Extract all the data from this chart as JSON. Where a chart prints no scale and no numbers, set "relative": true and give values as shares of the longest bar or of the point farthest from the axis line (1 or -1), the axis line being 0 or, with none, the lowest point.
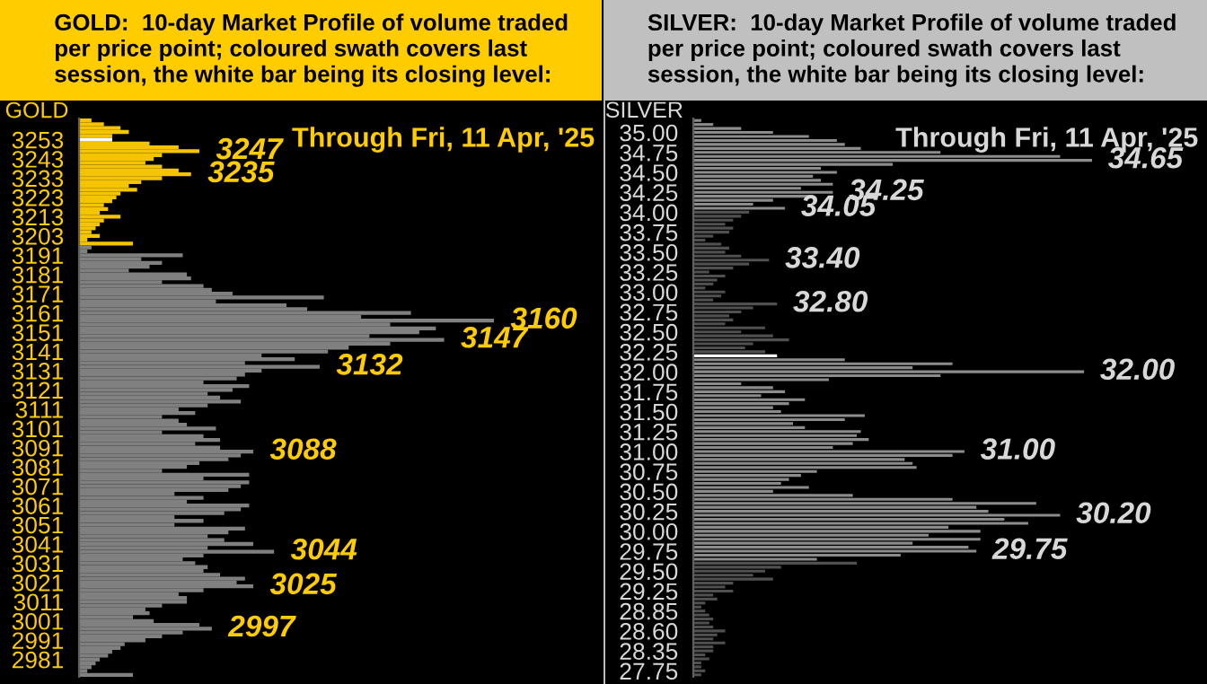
{
  "chart_data": [
    {
      "type": "bar",
      "orientation": "horizontal",
      "relative": true,
      "title": "GOLD:  10-day Market Profile of volume traded\nper price point; coloured swath covers last\nsession, the white bar being its closing level:",
      "ylabel": "GOLD",
      "categories": [
        null,
        null,
        null,
        null,
        null,
        "3253",
        null,
        null,
        null,
        null,
        "3243",
        null,
        null,
        null,
        null,
        "3233",
        null,
        null,
        null,
        null,
        "3223",
        null,
        null,
        null,
        null,
        "3213",
        null,
        null,
        null,
        null,
        "3203",
        null,
        null,
        null,
        null,
        "3191",
        null,
        null,
        null,
        null,
        "3181",
        null,
        null,
        null,
        null,
        "3171",
        null,
        null,
        null,
        null,
        "3161",
        null,
        null,
        null,
        null,
        "3151",
        null,
        null,
        null,
        null,
        "3141",
        null,
        null,
        null,
        null,
        "3131",
        null,
        null,
        null,
        null,
        "3121",
        null,
        null,
        null,
        null,
        "3111",
        null,
        null,
        null,
        null,
        "3101",
        null,
        null,
        null,
        null,
        "3091",
        null,
        null,
        null,
        null,
        "3081",
        null,
        null,
        null,
        null,
        "3071",
        null,
        null,
        null,
        null,
        "3061",
        null,
        null,
        null,
        null,
        "3051",
        null,
        null,
        null,
        null,
        "3041",
        null,
        null,
        null,
        null,
        "3031",
        null,
        null,
        null,
        null,
        "3021",
        null,
        null,
        null,
        null,
        "3011",
        null,
        null,
        null,
        null,
        "3001",
        null,
        null,
        null,
        null,
        "2991",
        null,
        null,
        null,
        null,
        "2981",
        null,
        null,
        null,
        null
      ],
      "values": [
        0.03,
        0.06,
        0.1,
        0.12,
        0.08,
        0.08,
        0.17,
        0.24,
        0.29,
        0.2,
        0.18,
        0.16,
        0.2,
        0.24,
        0.27,
        0.2,
        0.15,
        0.12,
        0.14,
        0.1,
        0.09,
        0.08,
        0.06,
        0.07,
        0.05,
        0.1,
        0.06,
        0.05,
        0.04,
        0.03,
        0.05,
        0.02,
        0.13,
        0.03,
        0.02,
        0.25,
        0.15,
        0.2,
        0.17,
        0.12,
        0.26,
        0.27,
        0.2,
        0.3,
        0.32,
        0.37,
        0.59,
        0.33,
        0.5,
        0.55,
        0.8,
        0.68,
        1.0,
        0.75,
        0.86,
        0.82,
        0.7,
        0.88,
        0.75,
        0.65,
        0.6,
        0.44,
        0.52,
        0.4,
        0.58,
        0.44,
        0.4,
        0.38,
        0.3,
        0.41,
        0.37,
        0.31,
        0.34,
        0.39,
        0.31,
        0.24,
        0.28,
        0.2,
        0.24,
        0.26,
        0.33,
        0.2,
        0.3,
        0.34,
        0.28,
        0.34,
        0.42,
        0.39,
        0.36,
        0.29,
        0.26,
        0.2,
        0.41,
        0.3,
        0.41,
        0.39,
        0.36,
        0.23,
        0.3,
        0.26,
        0.41,
        0.39,
        0.35,
        0.23,
        0.3,
        0.23,
        0.4,
        0.36,
        0.31,
        0.35,
        0.42,
        0.31,
        0.47,
        0.3,
        0.25,
        0.28,
        0.31,
        0.3,
        0.34,
        0.4,
        0.38,
        0.42,
        0.3,
        0.24,
        0.26,
        0.26,
        0.2,
        0.16,
        0.17,
        0.13,
        0.18,
        0.29,
        0.32,
        0.25,
        0.2,
        0.16,
        0.11,
        0.1,
        0.08,
        0.07,
        0.05,
        0.04,
        0.03,
        0.02,
        0.13
      ],
      "colors": [
        "#f5c400",
        "#f5c400",
        "#f5c400",
        "#f5c400",
        "#f5c400",
        "#ffffff",
        "#f5c400",
        "#f5c400",
        "#f5c400",
        "#f5c400",
        "#f5c400",
        "#f5c400",
        "#f5c400",
        "#f5c400",
        "#f5c400",
        "#f5c400",
        "#f5c400",
        "#f5c400",
        "#f5c400",
        "#f5c400",
        "#f5c400",
        "#f5c400",
        "#f5c400",
        "#f5c400",
        "#f5c400",
        "#f5c400",
        "#f5c400",
        "#f5c400",
        "#f5c400",
        "#f5c400",
        "#f5c400",
        "#f5c400",
        "#f5c400",
        "#808080",
        "#808080",
        "#808080",
        "#808080",
        "#808080",
        "#808080",
        "#808080",
        "#808080",
        "#808080",
        "#808080",
        "#808080",
        "#808080",
        "#808080",
        "#808080",
        "#808080",
        "#808080",
        "#808080",
        "#808080",
        "#808080",
        "#808080",
        "#808080",
        "#808080",
        "#808080",
        "#808080",
        "#808080",
        "#808080",
        "#808080",
        "#808080",
        "#808080",
        "#808080",
        "#808080",
        "#808080",
        "#808080",
        "#808080",
        "#808080",
        "#808080",
        "#808080",
        "#808080",
        "#808080",
        "#808080",
        "#808080",
        "#808080",
        "#808080",
        "#808080",
        "#808080",
        "#808080",
        "#808080",
        "#808080",
        "#808080",
        "#808080",
        "#808080",
        "#808080",
        "#808080",
        "#808080",
        "#808080",
        "#808080",
        "#808080",
        "#808080",
        "#808080",
        "#808080",
        "#808080",
        "#808080",
        "#808080",
        "#808080",
        "#808080",
        "#808080",
        "#808080",
        "#808080",
        "#808080",
        "#808080",
        "#808080",
        "#808080",
        "#808080",
        "#808080",
        "#808080",
        "#808080",
        "#808080",
        "#808080",
        "#808080",
        "#808080",
        "#808080",
        "#808080",
        "#808080",
        "#808080",
        "#808080",
        "#808080",
        "#808080",
        "#808080",
        "#808080",
        "#808080",
        "#808080",
        "#808080",
        "#808080",
        "#808080",
        "#808080",
        "#808080",
        "#808080",
        "#808080",
        "#808080",
        "#808080",
        "#808080",
        "#808080",
        "#808080",
        "#808080",
        "#808080",
        "#808080",
        "#808080",
        "#808080",
        "#808080",
        "#808080",
        "#808080",
        "#808080"
      ],
      "annotations": [
        "Through Fri, 11 Apr, '25",
        "3247",
        "3235",
        "3160",
        "3147",
        "3132",
        "3088",
        "3044",
        "3025",
        "2997"
      ]
    },
    {
      "type": "bar",
      "orientation": "horizontal",
      "relative": true,
      "title": "SILVER:  10-day Market Profile of volume traded\nper price point; coloured swath covers last\nsession, the white bar being its closing level:",
      "ylabel": "SILVER",
      "categories": [
        null,
        null,
        null,
        "35.00",
        null,
        null,
        null,
        null,
        "34.75",
        null,
        null,
        null,
        null,
        "34.50",
        null,
        null,
        null,
        null,
        "34.25",
        null,
        null,
        null,
        null,
        "34.00",
        null,
        null,
        null,
        null,
        "33.75",
        null,
        null,
        null,
        null,
        "33.50",
        null,
        null,
        null,
        null,
        "33.25",
        null,
        null,
        null,
        null,
        "33.00",
        null,
        null,
        null,
        null,
        "32.75",
        null,
        null,
        null,
        null,
        "32.50",
        null,
        null,
        null,
        null,
        "32.25",
        null,
        null,
        null,
        null,
        "32.00",
        null,
        null,
        null,
        null,
        "31.75",
        null,
        null,
        null,
        null,
        "31.50",
        null,
        null,
        null,
        null,
        "31.25",
        null,
        null,
        null,
        null,
        "31.00",
        null,
        null,
        null,
        null,
        "30.75",
        null,
        null,
        null,
        null,
        "30.50",
        null,
        null,
        null,
        null,
        "30.25",
        null,
        null,
        null,
        null,
        "30.00",
        null,
        null,
        null,
        null,
        "29.75",
        null,
        null,
        null,
        null,
        "29.50",
        null,
        null,
        null,
        null,
        "29.25",
        null,
        null,
        null,
        null,
        "28.85",
        null,
        null,
        null,
        null,
        "28.60",
        null,
        null,
        null,
        null,
        "28.35",
        null,
        null,
        null,
        null,
        "27.75",
        null
      ],
      "values": [
        0.02,
        0.05,
        0.12,
        0.2,
        0.29,
        0.36,
        0.38,
        0.42,
        0.62,
        0.92,
        1.0,
        0.5,
        0.32,
        0.36,
        0.3,
        0.32,
        0.35,
        0.27,
        0.35,
        0.3,
        0.2,
        0.15,
        0.23,
        0.14,
        0.12,
        0.1,
        0.08,
        0.1,
        0.09,
        0.05,
        0.03,
        0.07,
        0.09,
        0.08,
        0.12,
        0.19,
        0.14,
        0.1,
        0.04,
        0.08,
        0.06,
        0.05,
        0.03,
        0.08,
        0.07,
        0.05,
        0.21,
        0.15,
        0.12,
        0.09,
        0.1,
        0.08,
        0.18,
        0.12,
        0.2,
        0.24,
        0.15,
        0.13,
        0.18,
        0.21,
        0.38,
        0.65,
        0.55,
        0.98,
        0.62,
        0.34,
        0.12,
        0.2,
        0.23,
        0.17,
        0.28,
        0.24,
        0.2,
        0.22,
        0.43,
        0.38,
        0.25,
        0.28,
        0.42,
        0.41,
        0.44,
        0.4,
        0.35,
        0.68,
        0.65,
        0.53,
        0.55,
        0.56,
        0.31,
        0.27,
        0.24,
        0.22,
        0.29,
        0.2,
        0.4,
        0.65,
        0.86,
        0.71,
        0.74,
        0.92,
        0.78,
        0.84,
        0.64,
        0.72,
        0.59,
        0.72,
        0.55,
        0.69,
        0.71,
        0.52,
        0.31,
        0.41,
        0.22,
        0.18,
        0.15,
        0.2,
        0.1,
        0.08,
        0.1,
        0.05,
        0.06,
        0.03,
        0.02,
        0.03,
        0.04,
        0.05,
        0.04,
        0.05,
        0.08,
        0.06,
        0.05,
        0.08,
        0.05,
        0.05,
        0.03,
        0.04,
        0.02,
        0.02,
        0.03,
        0.02
      ],
      "colors": [
        "#8c8c8c",
        "#8c8c8c",
        "#8c8c8c",
        "#8c8c8c",
        "#8c8c8c",
        "#8c8c8c",
        "#8c8c8c",
        "#8c8c8c",
        "#8c8c8c",
        "#8c8c8c",
        "#8c8c8c",
        "#8c8c8c",
        "#8c8c8c",
        "#8c8c8c",
        "#8c8c8c",
        "#8c8c8c",
        "#8c8c8c",
        "#8c8c8c",
        "#8c8c8c",
        "#8c8c8c",
        "#8c8c8c",
        "#8c8c8c",
        "#8c8c8c",
        "#505050",
        "#505050",
        "#505050",
        "#505050",
        "#505050",
        "#505050",
        "#505050",
        "#505050",
        "#505050",
        "#505050",
        "#505050",
        "#505050",
        "#505050",
        "#505050",
        "#505050",
        "#505050",
        "#505050",
        "#505050",
        "#505050",
        "#505050",
        "#505050",
        "#505050",
        "#505050",
        "#505050",
        "#505050",
        "#505050",
        "#505050",
        "#505050",
        "#505050",
        "#505050",
        "#505050",
        "#505050",
        "#505050",
        "#505050",
        "#505050",
        "#505050",
        "#ffffff",
        "#8c8c8c",
        "#8c8c8c",
        "#8c8c8c",
        "#8c8c8c",
        "#8c8c8c",
        "#8c8c8c",
        "#8c8c8c",
        "#8c8c8c",
        "#8c8c8c",
        "#8c8c8c",
        "#8c8c8c",
        "#8c8c8c",
        "#8c8c8c",
        "#8c8c8c",
        "#8c8c8c",
        "#8c8c8c",
        "#8c8c8c",
        "#8c8c8c",
        "#8c8c8c",
        "#8c8c8c",
        "#8c8c8c",
        "#8c8c8c",
        "#8c8c8c",
        "#8c8c8c",
        "#8c8c8c",
        "#8c8c8c",
        "#8c8c8c",
        "#8c8c8c",
        "#8c8c8c",
        "#8c8c8c",
        "#8c8c8c",
        "#8c8c8c",
        "#8c8c8c",
        "#8c8c8c",
        "#8c8c8c",
        "#8c8c8c",
        "#8c8c8c",
        "#8c8c8c",
        "#8c8c8c",
        "#8c8c8c",
        "#8c8c8c",
        "#8c8c8c",
        "#8c8c8c",
        "#8c8c8c",
        "#8c8c8c",
        "#8c8c8c",
        "#8c8c8c",
        "#8c8c8c",
        "#8c8c8c",
        "#8c8c8c",
        "#8c8c8c",
        "#505050",
        "#505050",
        "#505050",
        "#505050",
        "#505050",
        "#505050",
        "#505050",
        "#505050",
        "#505050",
        "#505050",
        "#505050",
        "#505050",
        "#505050",
        "#505050",
        "#505050",
        "#505050",
        "#505050",
        "#505050",
        "#505050",
        "#505050",
        "#505050",
        "#505050",
        "#505050",
        "#505050",
        "#505050",
        "#505050",
        "#505050",
        "#505050",
        "#505050"
      ],
      "annotations": [
        "Through Fri, 11 Apr, '25",
        "34.65",
        "34.25",
        "34.05",
        "33.40",
        "32.80",
        "32.00",
        "31.00",
        "30.20",
        "29.75"
      ]
    }
  ]
}
